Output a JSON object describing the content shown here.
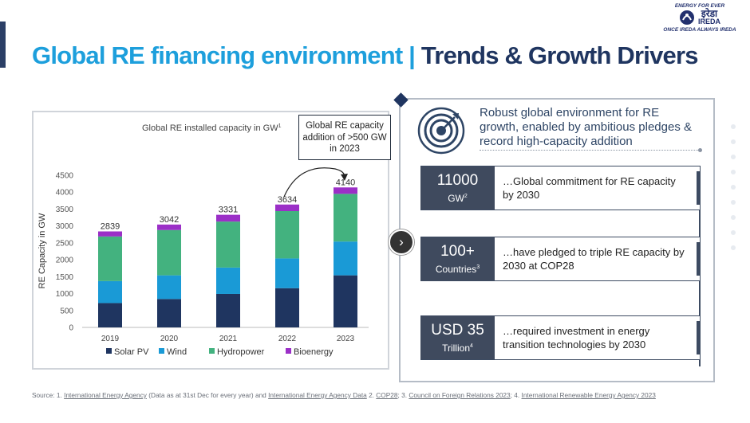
{
  "header": {
    "title_part1": "Global RE financing environment |",
    "title_part2": "Trends & Growth Drivers"
  },
  "logo": {
    "tagline_top": "ENERGY FOR EVER",
    "hindi_name": "इरेडा",
    "name": "IREDA",
    "tagline_bottom": "ONCE IREDA ALWAYS IREDA",
    "icon": "ireda-logo-icon"
  },
  "chart_data": {
    "type": "bar",
    "stacked": true,
    "title": "Global RE installed capacity in GW",
    "title_sup": "1",
    "xlabel": "",
    "ylabel": "RE Capacity in GW",
    "ylim": [
      0,
      4500
    ],
    "yticks": [
      0,
      500,
      1000,
      1500,
      2000,
      2500,
      3000,
      3500,
      4000,
      4500
    ],
    "categories": [
      "2019",
      "2020",
      "2021",
      "2022",
      "2023"
    ],
    "series": [
      {
        "name": "Solar PV",
        "color": "#1f3560",
        "values": [
          720,
          840,
          990,
          1160,
          1540
        ]
      },
      {
        "name": "Wind",
        "color": "#1a9ad6",
        "values": [
          650,
          700,
          780,
          880,
          1000
        ]
      },
      {
        "name": "Hydropower",
        "color": "#43b27f",
        "values": [
          1320,
          1340,
          1360,
          1400,
          1410
        ]
      },
      {
        "name": "Bioenergy",
        "color": "#9b2fc7",
        "values": [
          149,
          162,
          201,
          194,
          190
        ]
      }
    ],
    "totals": [
      2839,
      3042,
      3331,
      3634,
      4140
    ],
    "legend_position": "bottom"
  },
  "callout": {
    "text": "Global RE capacity addition of >500 GW in 2023"
  },
  "right_panel": {
    "headline": "Robust global environment for RE growth, enabled by ambitious pledges & record high-capacity addition",
    "icon": "target-icon",
    "nav_icon": "chevron-right-icon",
    "cards": [
      {
        "metric": "11000",
        "unit": "GW",
        "sup": "2",
        "text": "…Global commitment for RE capacity by 2030"
      },
      {
        "metric": "100+",
        "unit": "Countries",
        "sup": "3",
        "text": "…have pledged to triple RE capacity by 2030 at COP28"
      },
      {
        "metric": "USD 35",
        "unit": "Trillion",
        "sup": "4",
        "text": "…required investment in energy transition technologies by 2030"
      }
    ]
  },
  "source": {
    "prefix": "Source: 1.",
    "s1": "International Energy Agency",
    "s1_note": "(Data as at 31st Dec for every year) and",
    "s1b": "International Energy Agency Data",
    "s2_num": "2.",
    "s2": "COP28",
    "s3_num": "; 3.",
    "s3": "Council on Foreign Relations 2023",
    "s4_num": "; 4.",
    "s4": "International Renewable Energy Agency 2023"
  },
  "colors": {
    "title_blue": "#1d9fdc",
    "title_navy": "#1f3560",
    "card_dark": "#3f4a5e"
  }
}
